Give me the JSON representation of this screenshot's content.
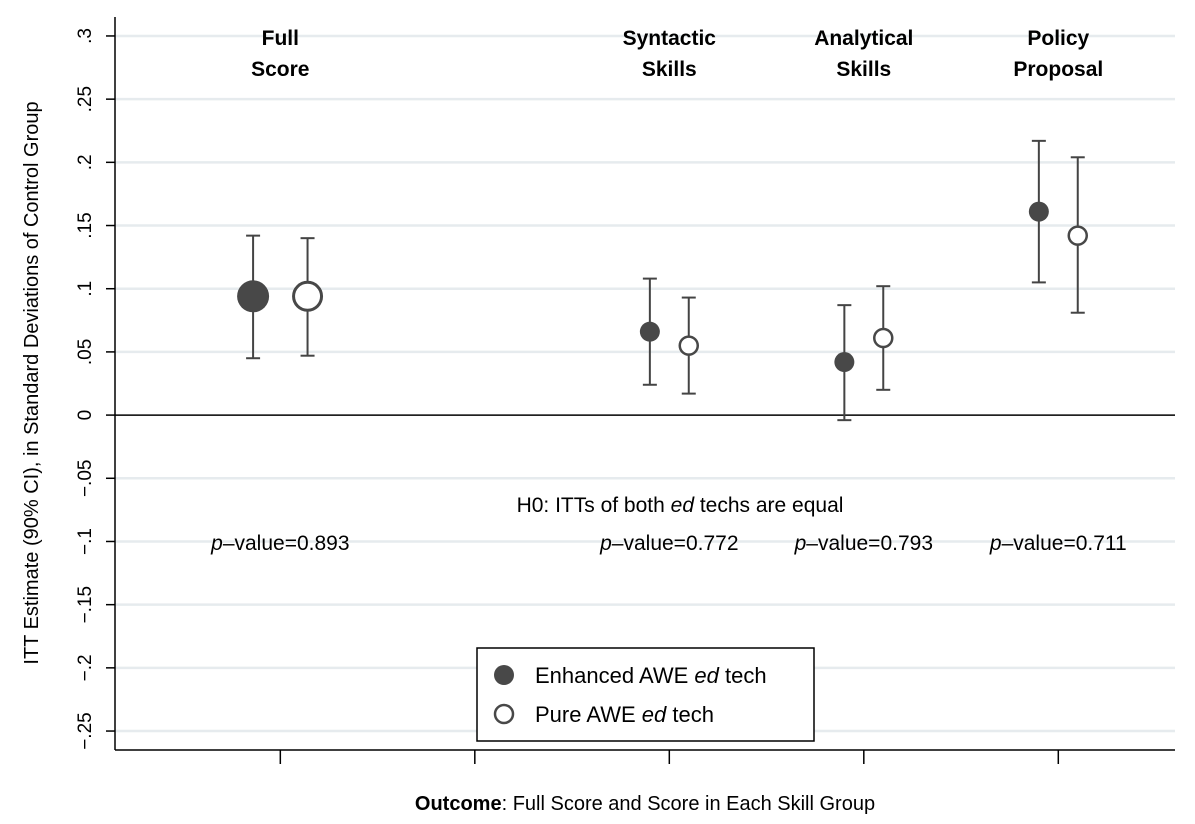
{
  "chart_data": {
    "type": "scatter",
    "ylabel": "ITT Estimate (90% CI), in Standard Deviations of Control Group",
    "xlabel_bold": "Outcome",
    "xlabel_rest": ": Full Score and Score in Each Skill Group",
    "ylim": [
      -0.265,
      0.315
    ],
    "y_ticks": [
      {
        "value": 0.3,
        "label": ".3"
      },
      {
        "value": 0.25,
        "label": ".25"
      },
      {
        "value": 0.2,
        "label": ".2"
      },
      {
        "value": 0.15,
        "label": ".15"
      },
      {
        "value": 0.1,
        "label": ".1"
      },
      {
        "value": 0.05,
        "label": ".05"
      },
      {
        "value": 0,
        "label": "0"
      },
      {
        "value": -0.05,
        "label": "-.05"
      },
      {
        "value": -0.1,
        "label": "-.1"
      },
      {
        "value": -0.15,
        "label": "-.15"
      },
      {
        "value": -0.2,
        "label": "-.2"
      },
      {
        "value": -0.25,
        "label": "-.25"
      }
    ],
    "x_ticks": [
      1,
      2,
      3,
      4,
      5
    ],
    "groups": [
      {
        "x": 1,
        "label_lines": [
          "Full",
          "Score"
        ],
        "p_label": "p",
        "p_value": "–value=0.893"
      },
      {
        "x": 3,
        "label_lines": [
          "Syntactic",
          "Skills"
        ],
        "p_label": "p",
        "p_value": "–value=0.772"
      },
      {
        "x": 4,
        "label_lines": [
          "Analytical",
          "Skills"
        ],
        "p_label": "p",
        "p_value": "–value=0.793"
      },
      {
        "x": 5,
        "label_lines": [
          "Policy",
          "Proposal"
        ],
        "p_label": "p",
        "p_value": "–value=0.711"
      }
    ],
    "hypothesis": {
      "before": "H0: ITTs of both ",
      "italic": "ed",
      "after": " techs are equal"
    },
    "series": [
      {
        "name_before": "Enhanced AWE ",
        "name_italic": "ed",
        "name_after": " tech",
        "marker": "filled",
        "color": "#484848",
        "points": [
          {
            "x": 0.86,
            "y": 0.094,
            "lo": 0.045,
            "hi": 0.142,
            "size": "large"
          },
          {
            "x": 2.9,
            "y": 0.066,
            "lo": 0.024,
            "hi": 0.108,
            "size": "small"
          },
          {
            "x": 3.9,
            "y": 0.042,
            "lo": -0.004,
            "hi": 0.087,
            "size": "small"
          },
          {
            "x": 4.9,
            "y": 0.161,
            "lo": 0.105,
            "hi": 0.217,
            "size": "small"
          }
        ]
      },
      {
        "name_before": "Pure AWE ",
        "name_italic": "ed",
        "name_after": " tech",
        "marker": "hollow",
        "color": "#484848",
        "points": [
          {
            "x": 1.14,
            "y": 0.094,
            "lo": 0.047,
            "hi": 0.14,
            "size": "large"
          },
          {
            "x": 3.1,
            "y": 0.055,
            "lo": 0.017,
            "hi": 0.093,
            "size": "small"
          },
          {
            "x": 4.1,
            "y": 0.061,
            "lo": 0.02,
            "hi": 0.102,
            "size": "small"
          },
          {
            "x": 5.1,
            "y": 0.142,
            "lo": 0.081,
            "hi": 0.204,
            "size": "small"
          }
        ]
      }
    ],
    "legend_position": "bottom-center",
    "grid": true
  }
}
